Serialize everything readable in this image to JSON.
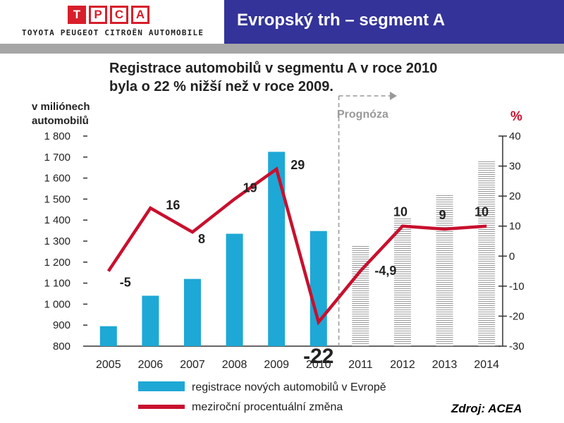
{
  "header": {
    "logo_letters": [
      "T",
      "P",
      "C",
      "A"
    ],
    "logo_subtitle": "TOYOTA PEUGEOT CITROËN AUTOMOBILE",
    "title": "Evropský trh – segment A"
  },
  "source": "Zdroj: ACEA",
  "colors": {
    "bars": "#1ea8d5",
    "line": "#c8102e",
    "header_bg": "#333399",
    "logo": "#d81e2a",
    "forecast_bars": "#9a9a9a"
  },
  "chart_data": {
    "type": "bar",
    "title_line1": "Registrace automobilů v segmentu A v roce 2010",
    "title_line2": "byla o 22 % nižší než v roce 2009.",
    "ylabel_left_line1": "v miliónech",
    "ylabel_left_line2": "automobilů",
    "ylabel_right": "%",
    "forecast_label": "Prognóza",
    "categories": [
      "2005",
      "2006",
      "2007",
      "2008",
      "2009",
      "2010",
      "2011",
      "2012",
      "2013",
      "2014"
    ],
    "ylim_left": [
      800,
      1800
    ],
    "yticks_left": [
      "800",
      "900",
      "1 000",
      "1 100",
      "1 200",
      "1 300",
      "1 400",
      "1 500",
      "1 600",
      "1 700",
      "1 800"
    ],
    "ylim_right": [
      -30,
      40
    ],
    "yticks_right": [
      "-30",
      "-20",
      "-10",
      "0",
      "10",
      "20",
      "30",
      "40"
    ],
    "forecast_from": "2011",
    "series": [
      {
        "name": "registrace nových automobilů v Evropě",
        "kind": "bar",
        "values": [
          895,
          1040,
          1120,
          1335,
          1725,
          1348,
          1280,
          1410,
          1525,
          1680
        ]
      },
      {
        "name": "meziroční procentuální změna",
        "kind": "line",
        "values": [
          -5,
          16,
          8,
          19,
          29,
          -22,
          -4.9,
          10,
          9,
          10
        ],
        "labels": [
          "-5",
          "16",
          "8",
          "19",
          "29",
          "-22",
          "-4,9",
          "10",
          "9",
          "10"
        ]
      }
    ]
  }
}
